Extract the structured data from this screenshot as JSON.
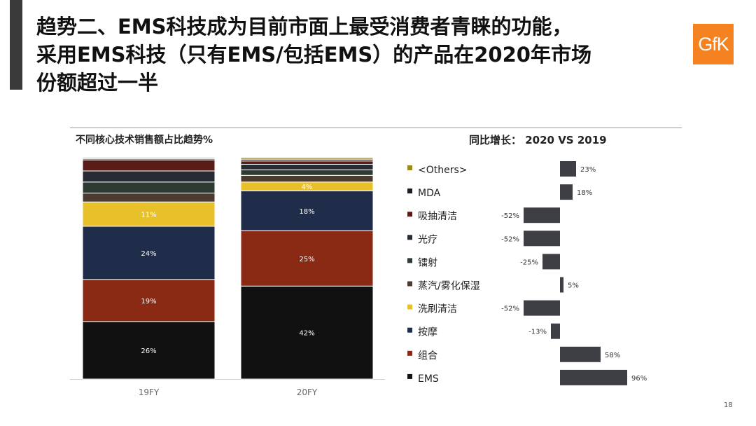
{
  "title": {
    "lines": [
      "趋势二、EMS科技成为目前市面上最受消费者青睐的功能，",
      "采用EMS科技（只有EMS/包括EMS）的产品在2020年市场",
      "份额超过一半"
    ]
  },
  "logo": {
    "text": "GfK",
    "color": "#f58220"
  },
  "page_number": "18",
  "chart_data": [
    {
      "type": "bar",
      "stacked": true,
      "title": "不同核心技术销售额占比趋势%",
      "categories": [
        "19FY",
        "20FY"
      ],
      "series": [
        {
          "name": "EMS",
          "color": "#111111",
          "values": [
            26,
            42
          ],
          "labels": [
            "26%",
            "42%"
          ]
        },
        {
          "name": "组合",
          "color": "#8a2a14",
          "values": [
            19,
            25
          ],
          "labels": [
            "19%",
            "25%"
          ]
        },
        {
          "name": "按摩",
          "color": "#1f2d4a",
          "values": [
            24,
            18
          ],
          "labels": [
            "24%",
            "18%"
          ]
        },
        {
          "name": "洗刷清洁",
          "color": "#e8c02a",
          "values": [
            11,
            4
          ],
          "labels": [
            "11%",
            "4%"
          ]
        },
        {
          "name": "蒸汽/雾化保湿",
          "color": "#4a3a30",
          "values": [
            4,
            3
          ],
          "labels": [
            "",
            ""
          ]
        },
        {
          "name": "镭射",
          "color": "#2e3a34",
          "values": [
            5,
            2.5
          ],
          "labels": [
            "",
            ""
          ]
        },
        {
          "name": "光疗",
          "color": "#262a33",
          "values": [
            5,
            2.5
          ],
          "labels": [
            "",
            ""
          ]
        },
        {
          "name": "吸抽清洁",
          "color": "#5a1c16",
          "values": [
            5,
            1.5
          ],
          "labels": [
            "",
            ""
          ]
        },
        {
          "name": "MDA",
          "color": "#1c1c24",
          "values": [
            0.5,
            0.8
          ],
          "labels": [
            "",
            ""
          ]
        },
        {
          "name": "<Others>",
          "color": "#9a8a20",
          "values": [
            0.5,
            0.7
          ],
          "labels": [
            "",
            ""
          ]
        }
      ],
      "ylim": [
        0,
        100
      ]
    },
    {
      "type": "bar",
      "orientation": "horizontal",
      "title": "同比增长：  2020 VS 2019",
      "bar_color": "#3d3f45",
      "categories": [
        "<Others>",
        "MDA",
        "吸抽清洁",
        "光疗",
        "镭射",
        "蒸汽/雾化保湿",
        "洗刷清洁",
        "按摩",
        "组合",
        "EMS"
      ],
      "legend_colors": [
        "#9a8a20",
        "#1c1c24",
        "#5a1c16",
        "#262a33",
        "#2e3a34",
        "#4a3a30",
        "#e8c02a",
        "#1f2d4a",
        "#8a2a14",
        "#111111"
      ],
      "values": [
        23,
        18,
        -52,
        -52,
        -25,
        5,
        -52,
        -13,
        58,
        96
      ],
      "labels": [
        "23%",
        "18%",
        "-52%",
        "-52%",
        "-25%",
        "5%",
        "-52%",
        "-13%",
        "58%",
        "96%"
      ]
    }
  ]
}
